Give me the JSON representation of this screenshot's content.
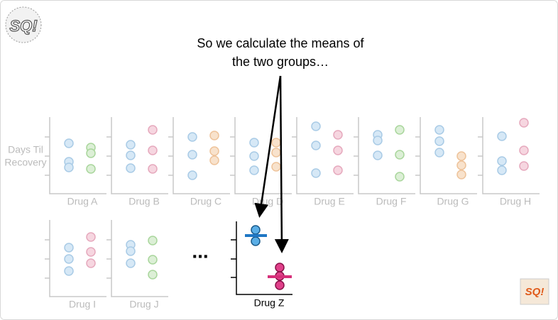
{
  "caption": {
    "line1": "So we calculate the means of",
    "line2": "the two groups…"
  },
  "y_label": {
    "line1": "Days Til",
    "line2": "Recovery"
  },
  "panels": [
    "Drug A",
    "Drug B",
    "Drug C",
    "Drug D",
    "Drug E",
    "Drug F",
    "Drug G",
    "Drug H",
    "Drug I",
    "Drug J"
  ],
  "ellipsis": "...",
  "focus_panel": "Drug Z",
  "logo": "SQ!"
}
